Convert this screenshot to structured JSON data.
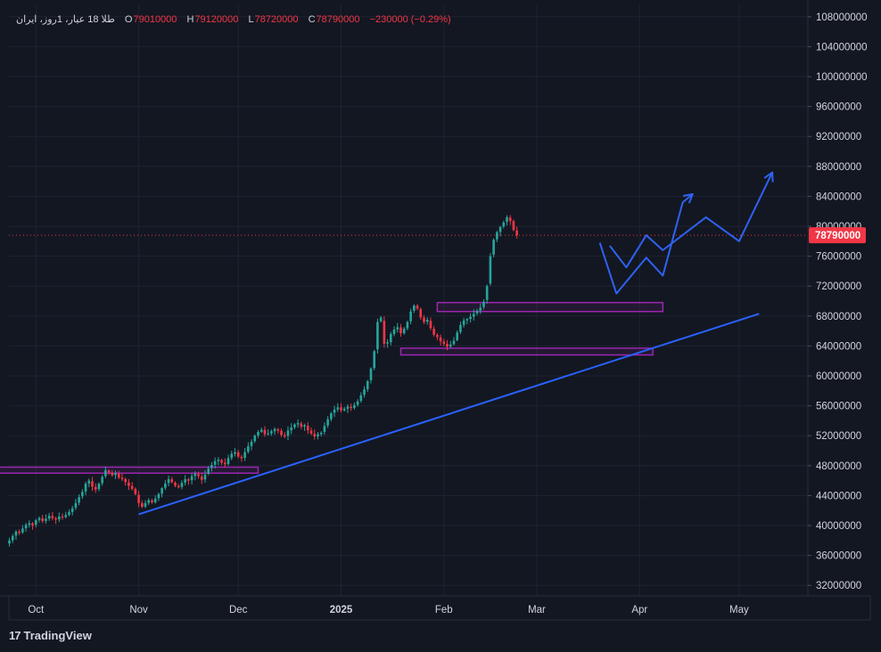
{
  "legend": {
    "symbol": "طلا 18 عیار، 1روز، ایران",
    "open_label": "O",
    "open": "79010000",
    "high_label": "H",
    "high": "79120000",
    "low_label": "L",
    "low": "78720000",
    "close_label": "C",
    "close": "78790000",
    "change": "−230000 (−0.29%)"
  },
  "brand": {
    "logo_text": "17",
    "name": "TradingView"
  },
  "colors": {
    "up": "#26a69a",
    "down": "#f23645",
    "trend": "#2962ff",
    "zone": "#9c27b0",
    "projection": "#2e62f0",
    "background": "#131722"
  },
  "chart_data": {
    "type": "candlestick",
    "title": "",
    "ylim": [
      30000000,
      110000000
    ],
    "y_ticks": [
      "108000000",
      "104000000",
      "100000000",
      "96000000",
      "92000000",
      "88000000",
      "84000000",
      "80000000",
      "76000000",
      "72000000",
      "68000000",
      "64000000",
      "60000000",
      "56000000",
      "52000000",
      "48000000",
      "44000000",
      "40000000",
      "36000000",
      "32000000"
    ],
    "x_ticks": [
      {
        "label": "Oct",
        "day": 8
      },
      {
        "label": "Nov",
        "day": 39
      },
      {
        "label": "Dec",
        "day": 69
      },
      {
        "label": "2025",
        "day": 100
      },
      {
        "label": "Feb",
        "day": 131
      },
      {
        "label": "Mar",
        "day": 159
      },
      {
        "label": "Apr",
        "day": 190
      },
      {
        "label": "May",
        "day": 220
      }
    ],
    "last_price_label": "78790000",
    "last_price": 78790000,
    "closes": [
      38000000,
      38600000,
      39200000,
      39000000,
      39600000,
      40100000,
      40300000,
      40000000,
      40700000,
      41000000,
      40600000,
      40900000,
      41300000,
      41000000,
      40800000,
      41200000,
      41100000,
      41400000,
      41800000,
      42300000,
      43000000,
      43800000,
      44500000,
      45600000,
      46000000,
      45200000,
      44800000,
      45600000,
      46500000,
      47400000,
      47100000,
      46700000,
      47000000,
      46400000,
      46200000,
      45800000,
      45300000,
      44900000,
      44200000,
      43000000,
      42500000,
      43000000,
      43400000,
      43100000,
      43600000,
      44200000,
      45000000,
      45600000,
      46200000,
      45800000,
      45300000,
      45100000,
      45700000,
      46200000,
      46000000,
      46600000,
      46900000,
      46600000,
      46100000,
      46800000,
      47600000,
      48100000,
      48600000,
      48800000,
      48400000,
      48200000,
      49000000,
      49600000,
      49800000,
      49200000,
      49000000,
      49800000,
      50600000,
      51200000,
      52000000,
      52500000,
      52800000,
      52200000,
      52300000,
      52600000,
      52900000,
      52700000,
      52100000,
      51900000,
      52700000,
      53100000,
      53500000,
      53700000,
      53200000,
      53400000,
      52700000,
      52300000,
      51900000,
      52200000,
      52400000,
      53300000,
      54200000,
      55000000,
      55500000,
      55800000,
      55400000,
      55600000,
      55900000,
      55700000,
      56100000,
      56600000,
      57400000,
      58200000,
      59300000,
      61000000,
      63300000,
      67200000,
      67800000,
      64300000,
      64500000,
      65600000,
      66200000,
      66500000,
      65700000,
      66300000,
      67200000,
      68600000,
      69400000,
      69000000,
      67800000,
      67200000,
      67500000,
      66400000,
      65500000,
      65200000,
      64600000,
      64300000,
      63900000,
      64200000,
      64700000,
      65800000,
      66800000,
      67400000,
      67600000,
      67900000,
      68300000,
      68700000,
      69100000,
      69900000,
      72000000,
      76000000,
      78200000,
      79200000,
      79900000,
      80500000,
      81200000,
      80700000,
      79500000,
      78790000
    ],
    "zones": [
      {
        "label": "",
        "y_top": 47800000,
        "y_bottom": 47000000,
        "start_day": -9,
        "end_day": 75
      },
      {
        "label": "",
        "y_top": 69800000,
        "y_bottom": 68600000,
        "start_day": 129,
        "end_day": 197
      },
      {
        "label": "",
        "y_top": 63700000,
        "y_bottom": 62800000,
        "start_day": 118,
        "end_day": 194
      }
    ],
    "trendline": {
      "start_day": 39,
      "start_price": 41500000,
      "end_day": 226,
      "end_price": 68300000
    },
    "projection_1": {
      "day": [
        178,
        183,
        192,
        197,
        203,
        206
      ],
      "price": [
        77800000,
        71000000,
        75800000,
        73400000,
        83200000,
        84300000
      ]
    },
    "projection_2": {
      "day": [
        181,
        186,
        192,
        197,
        210,
        220,
        230
      ],
      "price": [
        77400000,
        74500000,
        78800000,
        76800000,
        81200000,
        78000000,
        87200000
      ]
    }
  }
}
